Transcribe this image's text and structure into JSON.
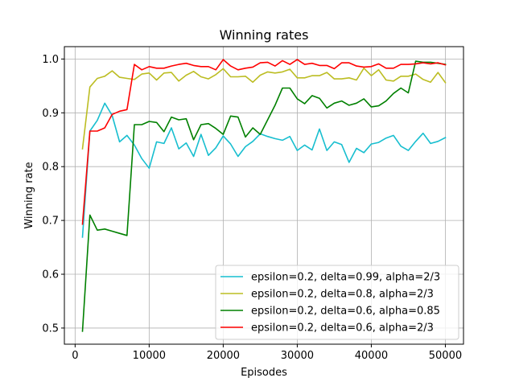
{
  "chart_data": {
    "type": "line",
    "title": "Winning rates",
    "xlabel": "Episodes",
    "ylabel": "Winning rate",
    "xlim": [
      -1450,
      52450
    ],
    "ylim": [
      0.47,
      1.023
    ],
    "xticks": [
      0,
      10000,
      20000,
      30000,
      40000,
      50000
    ],
    "yticks": [
      0.5,
      0.6,
      0.7,
      0.8,
      0.9,
      1.0
    ],
    "ytick_labels": [
      "0.5",
      "0.6",
      "0.7",
      "0.8",
      "0.9",
      "1.0"
    ],
    "grid": true,
    "legend_position": "lower-right",
    "x": [
      1000,
      2000,
      3000,
      4000,
      5000,
      6000,
      7000,
      8000,
      9000,
      10000,
      11000,
      12000,
      13000,
      14000,
      15000,
      16000,
      17000,
      18000,
      19000,
      20000,
      21000,
      22000,
      23000,
      24000,
      25000,
      26000,
      27000,
      28000,
      29000,
      30000,
      31000,
      32000,
      33000,
      34000,
      35000,
      36000,
      37000,
      38000,
      39000,
      40000,
      41000,
      42000,
      43000,
      44000,
      45000,
      46000,
      47000,
      48000,
      49000,
      50000
    ],
    "series": [
      {
        "name": "epsilon=0.2, delta=0.99, alpha=2/3",
        "color": "#17becf",
        "values": [
          0.669,
          0.866,
          0.886,
          0.918,
          0.895,
          0.846,
          0.858,
          0.84,
          0.815,
          0.797,
          0.846,
          0.843,
          0.872,
          0.833,
          0.844,
          0.819,
          0.86,
          0.821,
          0.835,
          0.857,
          0.842,
          0.819,
          0.837,
          0.847,
          0.861,
          0.856,
          0.852,
          0.849,
          0.856,
          0.83,
          0.84,
          0.831,
          0.87,
          0.83,
          0.846,
          0.841,
          0.808,
          0.834,
          0.826,
          0.842,
          0.845,
          0.853,
          0.858,
          0.838,
          0.83,
          0.847,
          0.862,
          0.843,
          0.847,
          0.854
        ]
      },
      {
        "name": "epsilon=0.2, delta=0.8, alpha=2/3",
        "color": "#bcbd22",
        "values": [
          0.833,
          0.948,
          0.964,
          0.968,
          0.978,
          0.966,
          0.964,
          0.962,
          0.972,
          0.974,
          0.961,
          0.974,
          0.975,
          0.959,
          0.97,
          0.977,
          0.967,
          0.963,
          0.971,
          0.982,
          0.967,
          0.967,
          0.968,
          0.957,
          0.97,
          0.976,
          0.974,
          0.976,
          0.981,
          0.965,
          0.965,
          0.969,
          0.969,
          0.975,
          0.963,
          0.963,
          0.965,
          0.961,
          0.983,
          0.969,
          0.98,
          0.961,
          0.959,
          0.968,
          0.968,
          0.972,
          0.962,
          0.957,
          0.975,
          0.956
        ]
      },
      {
        "name": "epsilon=0.2, delta=0.6, alpha=0.85",
        "color": "#008000",
        "values": [
          0.494,
          0.71,
          0.682,
          0.684,
          0.68,
          0.676,
          0.672,
          0.878,
          0.878,
          0.884,
          0.882,
          0.865,
          0.892,
          0.887,
          0.889,
          0.85,
          0.878,
          0.88,
          0.871,
          0.86,
          0.894,
          0.892,
          0.855,
          0.872,
          0.86,
          0.887,
          0.914,
          0.946,
          0.946,
          0.926,
          0.917,
          0.932,
          0.927,
          0.909,
          0.918,
          0.922,
          0.914,
          0.918,
          0.926,
          0.911,
          0.913,
          0.922,
          0.936,
          0.946,
          0.937,
          0.996,
          0.994,
          0.994,
          0.992,
          0.99
        ]
      },
      {
        "name": "epsilon=0.2, delta=0.6, alpha=2/3",
        "color": "#ff0000",
        "values": [
          0.693,
          0.866,
          0.866,
          0.872,
          0.897,
          0.903,
          0.906,
          0.99,
          0.98,
          0.986,
          0.983,
          0.983,
          0.987,
          0.99,
          0.992,
          0.988,
          0.986,
          0.986,
          0.98,
          0.999,
          0.987,
          0.98,
          0.983,
          0.985,
          0.993,
          0.994,
          0.987,
          0.997,
          0.99,
          0.999,
          0.99,
          0.992,
          0.988,
          0.988,
          0.982,
          0.993,
          0.993,
          0.987,
          0.985,
          0.986,
          0.991,
          0.983,
          0.983,
          0.99,
          0.99,
          0.991,
          0.993,
          0.991,
          0.993,
          0.989
        ]
      }
    ]
  }
}
